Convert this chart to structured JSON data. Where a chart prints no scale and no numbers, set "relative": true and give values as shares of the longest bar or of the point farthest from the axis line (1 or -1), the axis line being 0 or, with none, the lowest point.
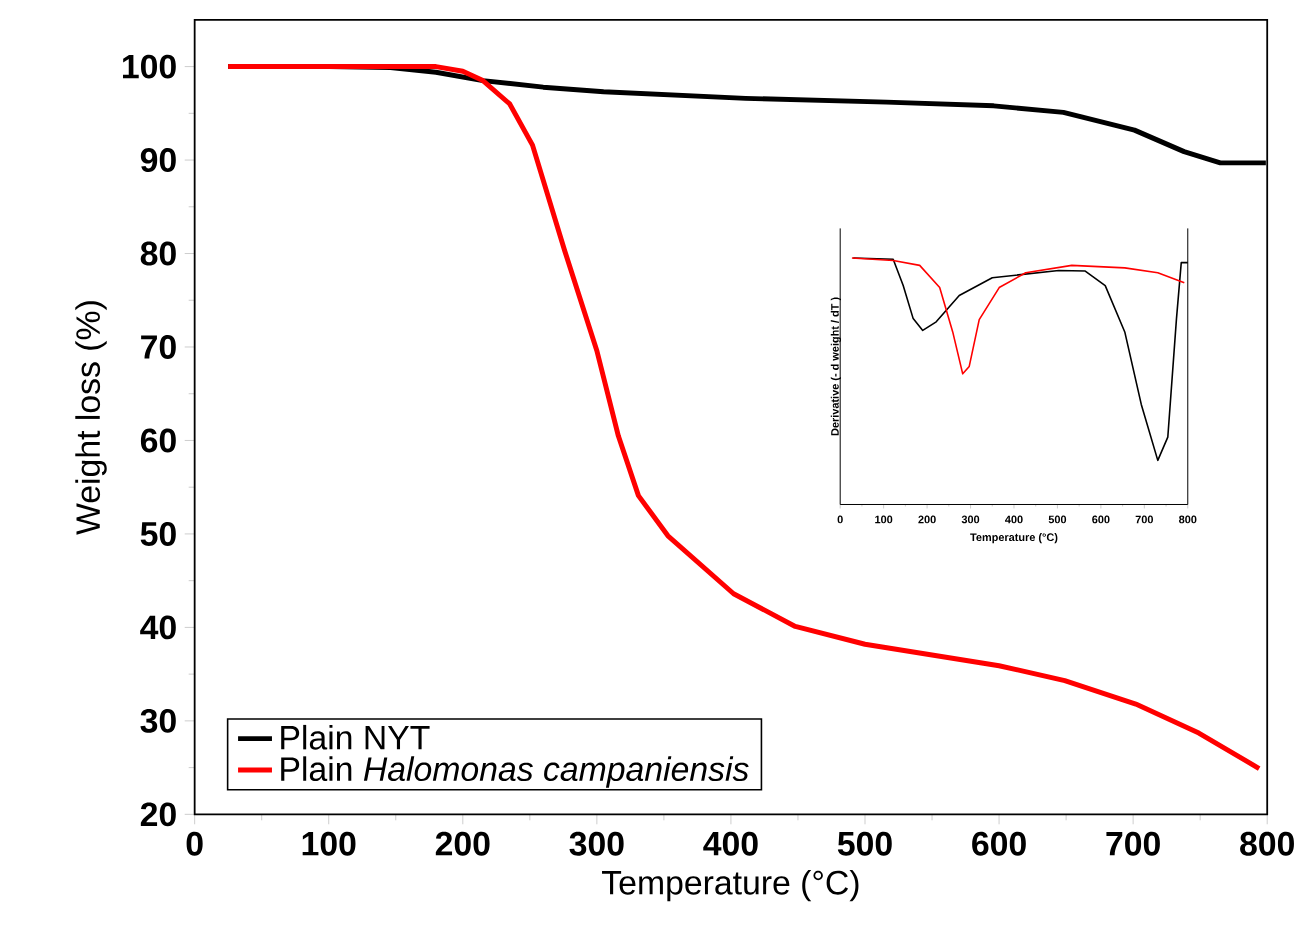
{
  "chart_data": [
    {
      "type": "line",
      "xlabel": "Temperature (°C)",
      "ylabel": "Weight loss (%)",
      "xlim": [
        0,
        800
      ],
      "ylim": [
        20,
        105
      ],
      "xticks": [
        0,
        100,
        200,
        300,
        400,
        500,
        600,
        700,
        800
      ],
      "yticks": [
        20,
        30,
        40,
        50,
        60,
        70,
        80,
        90,
        100
      ],
      "grid": false,
      "legend": "bottom left",
      "marker": "none",
      "line_style": "solid",
      "series": [
        {
          "name": "Plain NYT",
          "color": "#000000",
          "x": [
            25,
            100,
            146,
            180,
            215,
            260,
            305,
            411,
            516,
            596,
            648,
            701,
            738,
            765,
            799
          ],
          "values": [
            100,
            100,
            99.9,
            99.4,
            98.5,
            97.8,
            97.3,
            96.6,
            96.2,
            95.8,
            95.1,
            93.2,
            90.9,
            89.7,
            89.7
          ]
        },
        {
          "name": "Plain *Halomonas campaniensis*",
          "color": "#ff0000",
          "x": [
            25,
            100,
            180,
            200,
            215,
            235,
            252,
            276,
            300,
            316,
            331,
            353,
            402,
            448,
            500,
            600,
            649,
            702,
            749,
            794
          ],
          "values": [
            100,
            100,
            100,
            99.5,
            98.5,
            96,
            91.6,
            80.3,
            69.6,
            60.5,
            54.1,
            49.8,
            43.6,
            40.1,
            38.2,
            35.9,
            34.3,
            31.8,
            28.7,
            24.9
          ]
        }
      ]
    },
    {
      "type": "line",
      "relative": true,
      "xlabel": "Temperature (°C)",
      "ylabel": "Derivative (- d weight / dT )",
      "xlim": [
        0,
        800
      ],
      "xticks": [
        0,
        100,
        200,
        300,
        400,
        500,
        600,
        700,
        800
      ],
      "grid": false,
      "legend": false,
      "marker": "none",
      "line_style": "solid",
      "series": [
        {
          "color": "#000000",
          "x": [
            30,
            122,
            145,
            168,
            190,
            221,
            274,
            350,
            503,
            564,
            610,
            655,
            693,
            731,
            754,
            774,
            785,
            800
          ],
          "values": [
            1.0,
            0.995,
            0.888,
            0.754,
            0.706,
            0.741,
            0.848,
            0.92,
            0.949,
            0.947,
            0.888,
            0.7,
            0.406,
            0.179,
            0.273,
            0.754,
            0.981,
            0.981
          ]
        },
        {
          "color": "#ff0000",
          "x": [
            27,
            122,
            183,
            229,
            259,
            282,
            297,
            320,
            366,
            427,
            533,
            655,
            731,
            792
          ],
          "values": [
            1.0,
            0.99,
            0.97,
            0.88,
            0.7,
            0.53,
            0.56,
            0.75,
            0.88,
            0.94,
            0.97,
            0.96,
            0.94,
            0.9
          ]
        }
      ]
    }
  ]
}
